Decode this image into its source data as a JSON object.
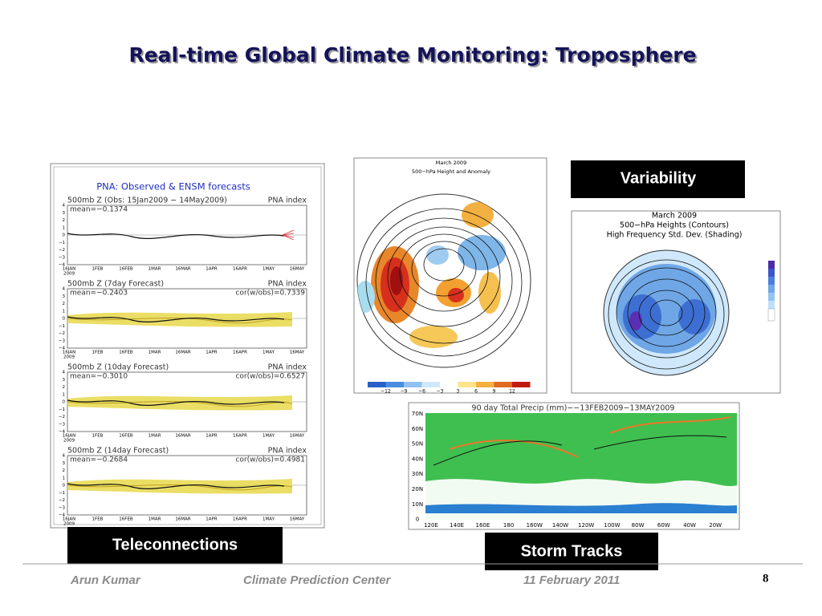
{
  "header": {
    "title": "Real-time Global Climate Monitoring: Troposphere"
  },
  "teleconnections": {
    "label": "Teleconnections",
    "figure_title": "PNA: Observed & ENSM forecasts",
    "yticks": [
      "4",
      "3",
      "2",
      "1",
      "0",
      "−1",
      "−2",
      "−3",
      "−4"
    ],
    "xticks": [
      "16JAN",
      "1FEB",
      "16FEB",
      "1MAR",
      "16MAR",
      "1APR",
      "16APR",
      "1MAY",
      "16MAY"
    ],
    "year": "2009",
    "panels": [
      {
        "heading": "500mb Z (Obs: 15Jan2009 − 14May2009)",
        "index": "PNA index",
        "mean": "mean=−0.1374"
      },
      {
        "heading": "500mb Z (7day Forecast)",
        "index": "PNA index",
        "mean": "mean=−0.2403",
        "cor": "cor(w/obs)=0.7339"
      },
      {
        "heading": "500mb Z (10day Forecast)",
        "index": "PNA index",
        "mean": "mean=−0.3010",
        "cor": "cor(w/obs)=0.6527"
      },
      {
        "heading": "500mb Z (14day Forecast)",
        "index": "PNA index",
        "mean": "mean=−0.2684",
        "cor": "cor(w/obs)=0.4981"
      }
    ]
  },
  "anomaly_map": {
    "title": "March 2009",
    "subtitle": "500−hPa Height and Anomaly",
    "colorbar_ticks": [
      "−12",
      "−9",
      "−6",
      "−3",
      "3",
      "6",
      "9",
      "12"
    ]
  },
  "variability": {
    "label": "Variability",
    "title": "March 2009",
    "line1": "500−hPa Heights (Contours)",
    "line2": "High Frequency Std. Dev. (Shading)"
  },
  "storm_tracks": {
    "label": "Storm Tracks",
    "title": "90 day Total Precip (mm)−−13FEB2009−13MAY2009",
    "lat_labels": [
      "70N",
      "60N",
      "50N",
      "40N",
      "30N",
      "20N",
      "10N",
      "0"
    ],
    "lon_labels": [
      "120E",
      "140E",
      "160E",
      "180",
      "160W",
      "140W",
      "120W",
      "100W",
      "80W",
      "60W",
      "40W",
      "20W"
    ]
  },
  "footer": {
    "author": "Arun Kumar",
    "organization": "Climate Prediction Center",
    "date": "11 February 2011",
    "page": "8"
  }
}
